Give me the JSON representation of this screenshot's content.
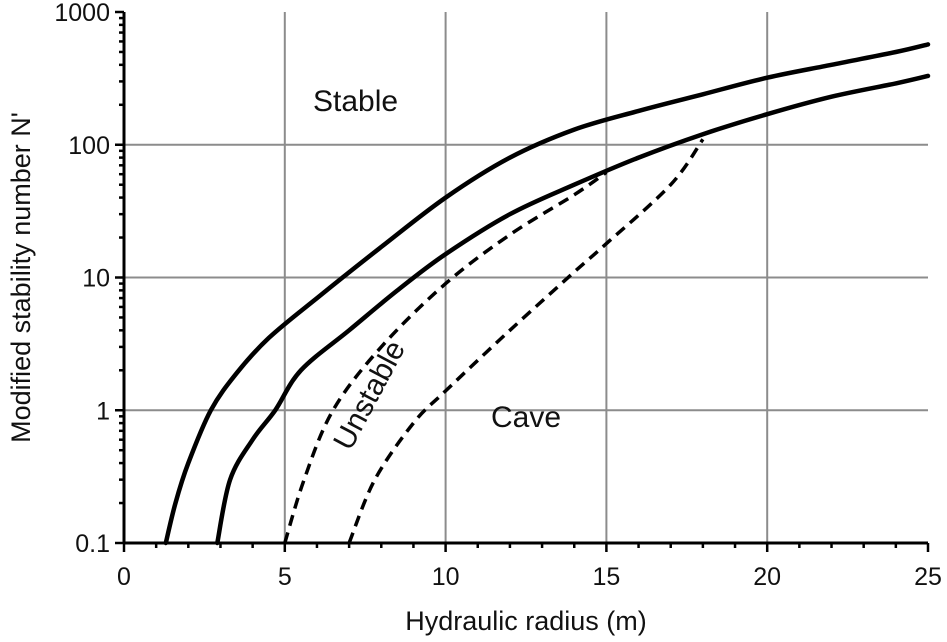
{
  "chart_data": {
    "type": "line",
    "xlabel": "Hydraulic radius (m)",
    "ylabel": "Modified stability number N'",
    "xlim": [
      0,
      25
    ],
    "ylim": [
      0.1,
      1000
    ],
    "y_scale": "log",
    "grid": true,
    "x_ticks": [
      0,
      5,
      10,
      15,
      20,
      25
    ],
    "x_tick_labels": [
      "0",
      "5",
      "10",
      "15",
      "20",
      "25"
    ],
    "y_ticks": [
      0.1,
      1,
      10,
      100,
      1000
    ],
    "y_tick_labels": [
      "0.1",
      "1",
      "10",
      "100",
      "1000"
    ],
    "series": [
      {
        "style": "solid",
        "points": [
          [
            1.3,
            0.1
          ],
          [
            1.6,
            0.2
          ],
          [
            2,
            0.4
          ],
          [
            2.7,
            1
          ],
          [
            3.5,
            1.9
          ],
          [
            4.5,
            3.5
          ],
          [
            6,
            7
          ],
          [
            8,
            17
          ],
          [
            10,
            40
          ],
          [
            12,
            80
          ],
          [
            14,
            130
          ],
          [
            16,
            180
          ],
          [
            18,
            240
          ],
          [
            20,
            320
          ],
          [
            22,
            400
          ],
          [
            24,
            500
          ],
          [
            25,
            570
          ]
        ]
      },
      {
        "style": "solid",
        "points": [
          [
            2.9,
            0.1
          ],
          [
            3.3,
            0.3
          ],
          [
            4,
            0.6
          ],
          [
            4.7,
            1
          ],
          [
            5.5,
            2
          ],
          [
            7,
            4
          ],
          [
            8.5,
            8
          ],
          [
            10,
            15
          ],
          [
            12,
            30
          ],
          [
            14,
            50
          ],
          [
            16,
            80
          ],
          [
            18,
            120
          ],
          [
            20,
            170
          ],
          [
            22,
            230
          ],
          [
            24,
            290
          ],
          [
            25,
            330
          ]
        ]
      },
      {
        "style": "dashed",
        "points": [
          [
            5,
            0.1
          ],
          [
            5.6,
            0.3
          ],
          [
            6.5,
            1
          ],
          [
            8,
            3
          ],
          [
            10,
            9
          ],
          [
            12,
            21
          ],
          [
            14,
            42
          ],
          [
            15,
            62
          ]
        ]
      },
      {
        "style": "dashed",
        "points": [
          [
            7,
            0.1
          ],
          [
            7.8,
            0.3
          ],
          [
            9,
            0.8
          ],
          [
            10,
            1.4
          ],
          [
            12,
            4
          ],
          [
            14,
            11
          ],
          [
            15,
            18
          ],
          [
            17,
            50
          ],
          [
            18,
            110
          ]
        ]
      }
    ],
    "annotations": [
      {
        "text": "Stable",
        "x": 7.2,
        "y": 180,
        "rotation": 0
      },
      {
        "text": "Unstable",
        "x": 7.9,
        "y": 1.2,
        "rotation": -62
      },
      {
        "text": "Cave",
        "x": 12.5,
        "y": 0.75,
        "rotation": 0
      }
    ]
  }
}
